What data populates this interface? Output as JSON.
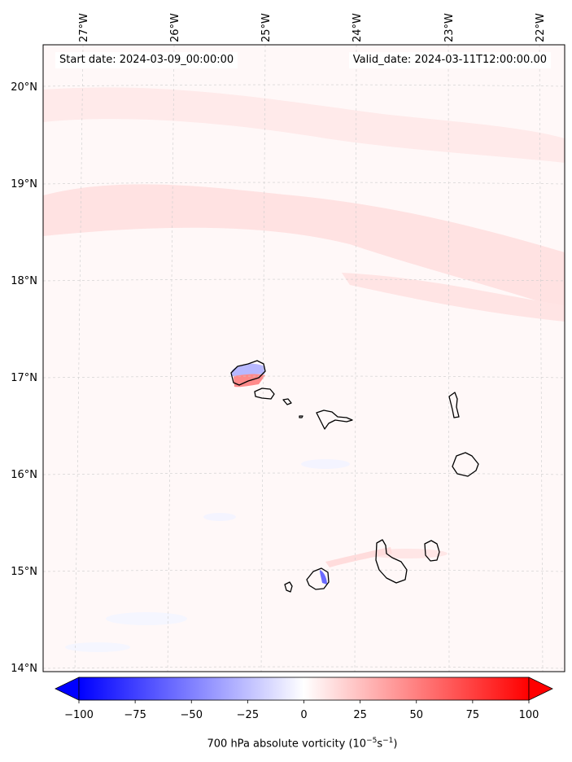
{
  "map": {
    "start_label": "Start date: 2024-03-09_00:00:00",
    "valid_label": "Valid_date: 2024-03-11T12:00:00.00",
    "lon_labels": [
      "27°W",
      "26°W",
      "25°W",
      "24°W",
      "23°W",
      "22°W"
    ],
    "lat_labels": [
      "20°N",
      "19°N",
      "18°N",
      "17°N",
      "16°N",
      "15°N",
      "14°N"
    ],
    "extent": {
      "lon_min": -27.35,
      "lon_max": -21.8,
      "lat_min": 13.95,
      "lat_max": 20.45
    },
    "colors": {
      "coast": "#000000",
      "grid": "#cccccc",
      "background": "#fff8f8",
      "positive": "#ff0000",
      "negative": "#0000ff"
    },
    "islands": [
      "Santo Antão",
      "São Vicente",
      "Santa Luzia",
      "Branco",
      "São Nicolau",
      "Sal",
      "Boa Vista",
      "Brava",
      "Fogo",
      "Santiago",
      "Maio"
    ]
  },
  "colorbar": {
    "ticks": [
      "−100",
      "−75",
      "−50",
      "−25",
      "0",
      "25",
      "50",
      "75",
      "100"
    ],
    "tick_values": [
      -100,
      -75,
      -50,
      -25,
      0,
      25,
      50,
      75,
      100
    ],
    "min": -100,
    "max": 100,
    "label_main": "700 hPa absolute vorticity (10",
    "label_exp1": "−5",
    "label_mid": "s",
    "label_exp2": "−1",
    "label_end": ")",
    "min_color": "#0000ff",
    "max_color": "#ff0000"
  }
}
